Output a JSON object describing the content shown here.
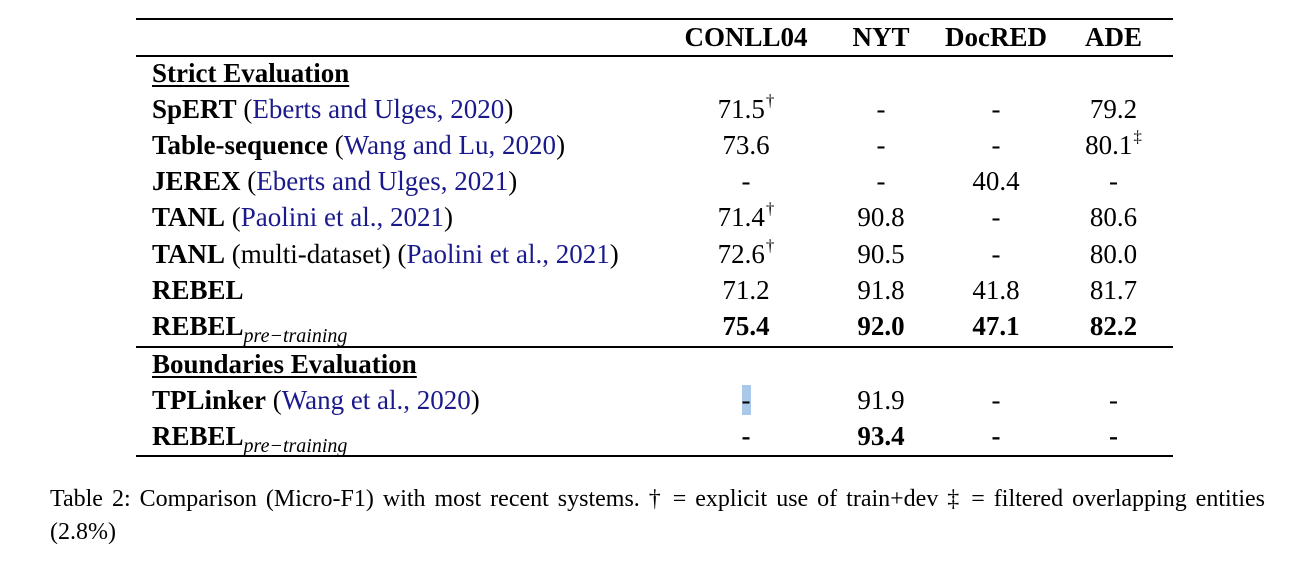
{
  "table": {
    "columns": [
      "CONLL04",
      "NYT",
      "DocRED",
      "ADE"
    ],
    "sections": [
      {
        "title": "Strict Evaluation",
        "rows": [
          {
            "model": "SpERT",
            "model_sub": "",
            "cite_open": " (",
            "cite": "Eberts and Ulges, 2020",
            "cite_close": ")",
            "extra": "",
            "values": [
              "71.5",
              "-",
              "-",
              "79.2"
            ],
            "marks": [
              "†",
              "",
              "",
              ""
            ],
            "bold": false
          },
          {
            "model": "Table-sequence",
            "model_sub": "",
            "cite_open": " (",
            "cite": "Wang and Lu, 2020",
            "cite_close": ")",
            "extra": "",
            "values": [
              "73.6",
              "-",
              "-",
              "80.1"
            ],
            "marks": [
              "",
              "",
              "",
              "‡"
            ],
            "bold": false
          },
          {
            "model": "JEREX",
            "model_sub": "",
            "cite_open": " (",
            "cite": "Eberts and Ulges, 2021",
            "cite_close": ")",
            "extra": "",
            "values": [
              "-",
              "-",
              "40.4",
              "-"
            ],
            "marks": [
              "",
              "",
              "",
              ""
            ],
            "bold": false
          },
          {
            "model": "TANL",
            "model_sub": "",
            "cite_open": " (",
            "cite": "Paolini et al., 2021",
            "cite_close": ")",
            "extra": "",
            "values": [
              "71.4",
              "90.8",
              "-",
              "80.6"
            ],
            "marks": [
              "†",
              "",
              "",
              ""
            ],
            "bold": false
          },
          {
            "model": "TANL",
            "model_sub": "",
            "cite_open": " (",
            "cite": "Paolini et al., 2021",
            "cite_close": ")",
            "extra": " (multi-dataset)",
            "values": [
              "72.6",
              "90.5",
              "-",
              "80.0"
            ],
            "marks": [
              "†",
              "",
              "",
              ""
            ],
            "bold": false
          },
          {
            "model": "REBEL",
            "model_sub": "",
            "cite_open": "",
            "cite": "",
            "cite_close": "",
            "extra": "",
            "values": [
              "71.2",
              "91.8",
              "41.8",
              "81.7"
            ],
            "marks": [
              "",
              "",
              "",
              ""
            ],
            "bold": false
          },
          {
            "model": "REBEL",
            "model_sub": "pre−training",
            "cite_open": "",
            "cite": "",
            "cite_close": "",
            "extra": "",
            "values": [
              "75.4",
              "92.0",
              "47.1",
              "82.2"
            ],
            "marks": [
              "",
              "",
              "",
              ""
            ],
            "bold": true
          }
        ]
      },
      {
        "title": "Boundaries Evaluation",
        "rows": [
          {
            "model": "TPLinker",
            "model_sub": "",
            "cite_open": " (",
            "cite": "Wang et al., 2020",
            "cite_close": ")",
            "extra": "",
            "values": [
              "-",
              "91.9",
              "-",
              "-"
            ],
            "marks": [
              "",
              "",
              "",
              ""
            ],
            "bold": false
          },
          {
            "model": "REBEL",
            "model_sub": "pre−training",
            "cite_open": "",
            "cite": "",
            "cite_close": "",
            "extra": "",
            "values": [
              "-",
              "93.4",
              "-",
              "-"
            ],
            "marks": [
              "",
              "",
              "",
              ""
            ],
            "bold": true
          }
        ]
      }
    ]
  },
  "caption": "Table 2: Comparison (Micro-F1) with most recent systems. † = explicit use of train+dev ‡ = filtered overlapping entities (2.8%)",
  "colors": {
    "citation": "#1a1a8c",
    "selection": "#a9c8ea"
  }
}
